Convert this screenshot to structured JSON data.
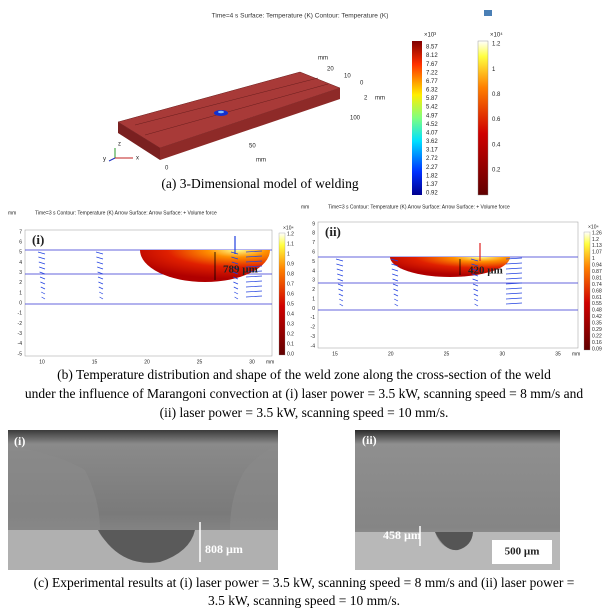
{
  "panel_a": {
    "header": "Time=4 s   Surface: Temperature (K)   Contour: Temperature (K)",
    "axis_labels": [
      "mm",
      "20",
      "10",
      "0",
      "2",
      "mm",
      "100",
      "50",
      "mm",
      "0"
    ],
    "triad": [
      "z",
      "y",
      "x"
    ],
    "colorbar_surface": {
      "exponent": "×10³",
      "ticks": [
        "8.57",
        "8.12",
        "7.67",
        "7.22",
        "6.77",
        "6.32",
        "5.87",
        "5.42",
        "4.97",
        "4.52",
        "4.07",
        "3.62",
        "3.17",
        "2.72",
        "2.27",
        "1.82",
        "1.37",
        "0.92"
      ]
    },
    "colorbar_contour": {
      "exponent": "×10⁴",
      "ticks": [
        "1.2",
        "1",
        "0.8",
        "0.6",
        "0.4",
        "0.2"
      ]
    },
    "caption": "(a) 3-Dimensional model of welding"
  },
  "panel_b": {
    "plots": [
      {
        "label": "(i)",
        "header": "Time=3 s   Contour: Temperature (K)   Arrow Surface: Arrow Surface: + Volume force",
        "unit": "mm",
        "yticks": [
          "7",
          "6",
          "5",
          "4",
          "3",
          "2",
          "1",
          "0",
          "-1",
          "-2",
          "-3",
          "-4",
          "-5"
        ],
        "xticks": [
          "10",
          "15",
          "20",
          "25",
          "30"
        ],
        "x_unit": "mm",
        "depth": "789 µm",
        "colorbar_exponent": "×10⁴",
        "colorbar_ticks": [
          "1.2",
          "1.1",
          "1",
          "0.9",
          "0.8",
          "0.7",
          "0.6",
          "0.5",
          "0.4",
          "0.3",
          "0.2",
          "0.1",
          "0.0"
        ]
      },
      {
        "label": "(ii)",
        "header": "Time=3 s   Contour: Temperature (K)   Arrow Surface:   Arrow Surface: + Volume force",
        "unit": "mm",
        "yticks": [
          "9",
          "8",
          "7",
          "6",
          "5",
          "4",
          "3",
          "2",
          "1",
          "0",
          "-1",
          "-2",
          "-3",
          "-4"
        ],
        "xticks": [
          "15",
          "20",
          "25",
          "30",
          "35"
        ],
        "x_unit": "mm",
        "depth": "420 µm",
        "colorbar_exponent": "×10⁴",
        "colorbar_ticks": [
          "1.26",
          "1.2",
          "1.13",
          "1.07",
          "1",
          "0.94",
          "0.87",
          "0.81",
          "0.74",
          "0.68",
          "0.61",
          "0.55",
          "0.48",
          "0.42",
          "0.35",
          "0.29",
          "0.22",
          "0.16",
          "0.09"
        ]
      }
    ],
    "caption": [
      "(b) Temperature distribution and shape of the weld zone along the cross-section of the weld",
      "under the influence of Marangoni convection at (i) laser power = 3.5 kW, scanning speed = 8 mm/s and",
      "(ii) laser power = 3.5 kW, scanning speed = 10 mm/s."
    ]
  },
  "panel_c": {
    "images": [
      {
        "label": "(i)",
        "depth": "808 µm"
      },
      {
        "label": "(ii)",
        "depth": "458 µm",
        "scale_bar": "500 µm"
      }
    ],
    "caption": [
      "(c) Experimental results at (i) laser power = 3.5 kW, scanning speed = 8 mm/s and  (ii) laser power =",
      "3.5 kW, scanning speed = 10 mm/s."
    ]
  }
}
